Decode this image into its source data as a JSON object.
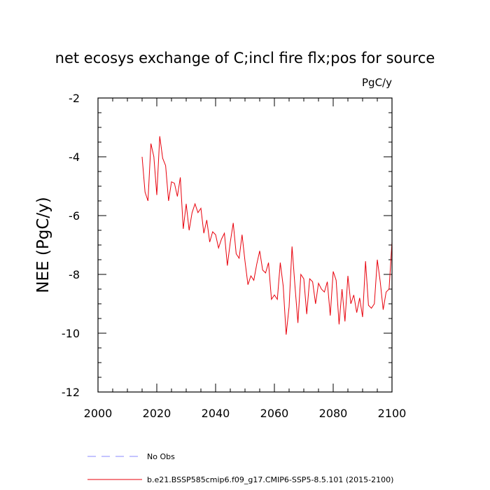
{
  "chart_data": {
    "type": "line",
    "title": "net ecosys exchange of C;incl fire flx;pos for source",
    "units": "PgC/y",
    "xlabel": "",
    "ylabel": "NEE  (PgC/y)",
    "xlim": [
      2000,
      2100
    ],
    "ylim": [
      -12,
      -2
    ],
    "xticks": [
      2000,
      2020,
      2040,
      2060,
      2080,
      2100
    ],
    "xtick_labels": [
      "2000",
      "2020",
      "2040",
      "2060",
      "2080",
      "2100"
    ],
    "yticks": [
      -12,
      -10,
      -8,
      -6,
      -4,
      -2
    ],
    "ytick_labels": [
      "-12",
      "-10",
      "-8",
      "-6",
      "-4",
      "-2"
    ],
    "series": [
      {
        "name": "b.e21.BSSP585cmip6.f09_g17.CMIP6-SSP5-8.5.101 (2015-2100)",
        "color": "#e8000b",
        "dash": "solid",
        "x": [
          2015,
          2016,
          2017,
          2018,
          2019,
          2020,
          2021,
          2022,
          2023,
          2024,
          2025,
          2026,
          2027,
          2028,
          2029,
          2030,
          2031,
          2032,
          2033,
          2034,
          2035,
          2036,
          2037,
          2038,
          2039,
          2040,
          2041,
          2042,
          2043,
          2044,
          2045,
          2046,
          2047,
          2048,
          2049,
          2050,
          2051,
          2052,
          2053,
          2054,
          2055,
          2056,
          2057,
          2058,
          2059,
          2060,
          2061,
          2062,
          2063,
          2064,
          2065,
          2066,
          2067,
          2068,
          2069,
          2070,
          2071,
          2072,
          2073,
          2074,
          2075,
          2076,
          2077,
          2078,
          2079,
          2080,
          2081,
          2082,
          2083,
          2084,
          2085,
          2086,
          2087,
          2088,
          2089,
          2090,
          2091,
          2092,
          2093,
          2094,
          2095,
          2096,
          2097,
          2098,
          2099,
          2100
        ],
        "values": [
          -4.0,
          -5.2,
          -5.5,
          -3.55,
          -4.0,
          -5.3,
          -3.3,
          -4.05,
          -4.3,
          -5.5,
          -4.85,
          -4.9,
          -5.35,
          -4.7,
          -6.45,
          -5.6,
          -6.5,
          -5.9,
          -5.6,
          -5.9,
          -5.75,
          -6.6,
          -6.15,
          -6.9,
          -6.55,
          -6.65,
          -7.1,
          -6.8,
          -6.6,
          -7.7,
          -6.9,
          -6.25,
          -7.3,
          -7.45,
          -6.65,
          -7.55,
          -8.35,
          -8.05,
          -8.2,
          -7.65,
          -7.2,
          -7.85,
          -7.95,
          -7.6,
          -8.85,
          -8.7,
          -8.85,
          -7.6,
          -8.4,
          -10.05,
          -9.1,
          -7.05,
          -8.4,
          -9.65,
          -8.0,
          -8.15,
          -9.35,
          -8.15,
          -8.25,
          -9.0,
          -8.3,
          -8.5,
          -8.6,
          -8.25,
          -9.4,
          -7.9,
          -8.2,
          -9.7,
          -8.5,
          -9.6,
          -8.05,
          -9.0,
          -8.7,
          -9.3,
          -8.8,
          -9.45,
          -7.55,
          -9.05,
          -9.15,
          -9.0,
          -7.5,
          -8.25,
          -9.2,
          -8.6,
          -8.5,
          -6.9
        ]
      },
      {
        "name": "No Obs",
        "color": "#8a8aff",
        "dash": "dashed",
        "x": [],
        "values": []
      }
    ],
    "legend": "bottom"
  }
}
